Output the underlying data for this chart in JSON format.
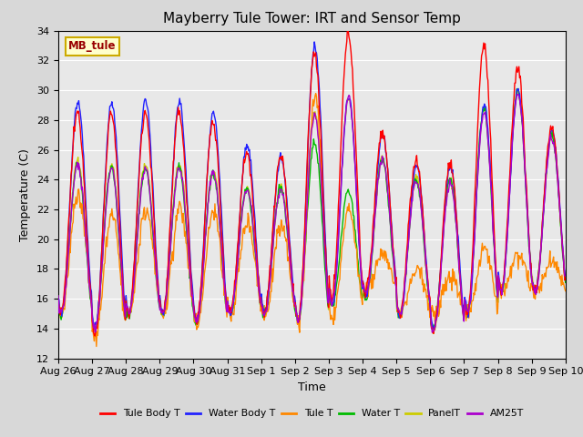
{
  "title": "Mayberry Tule Tower: IRT and Sensor Temp",
  "xlabel": "Time",
  "ylabel": "Temperature (C)",
  "ylim": [
    12,
    34
  ],
  "yticks": [
    12,
    14,
    16,
    18,
    20,
    22,
    24,
    26,
    28,
    30,
    32,
    34
  ],
  "xtick_labels": [
    "Aug 26",
    "Aug 27",
    "Aug 28",
    "Aug 29",
    "Aug 30",
    "Aug 31",
    "Sep 1",
    "Sep 2",
    "Sep 3",
    "Sep 4",
    "Sep 5",
    "Sep 6",
    "Sep 7",
    "Sep 8",
    "Sep 9",
    "Sep 10"
  ],
  "legend_colors": [
    "#ff0000",
    "#2222ff",
    "#ff8800",
    "#00bb00",
    "#cccc00",
    "#aa00cc"
  ],
  "legend_labels": [
    "Tule Body T",
    "Water Body T",
    "Tule T",
    "Water T",
    "PanelT",
    "AM25T"
  ],
  "watermark_text": "MB_tule",
  "fig_facecolor": "#d8d8d8",
  "ax_facecolor": "#e8e8e8",
  "grid_color": "#ffffff"
}
